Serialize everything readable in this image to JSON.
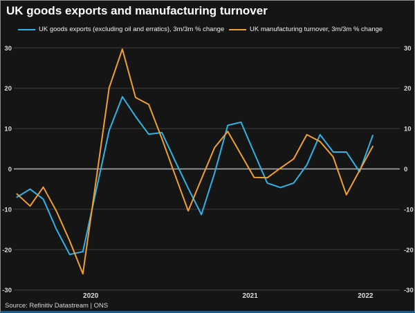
{
  "title": "UK goods exports and manufacturing turnover",
  "source": "Source: Refinitiv Datastream | ONS",
  "colors": {
    "background": "#151515",
    "exports_line": "#2fb4e9",
    "turnover_line": "#f2a02e",
    "zero_line": "#b2b2b2",
    "gridline": "#3f3f3f",
    "axis_text": "#dcdcdc",
    "bottom_bar": "#1f5c85"
  },
  "legend": [
    {
      "label": "UK goods exports (excluding oil and erratics), 3m/3m % change",
      "color": "#2fb4e9"
    },
    {
      "label": "UK manufacturing turnover, 3m/3m % change",
      "color": "#f2a02e"
    }
  ],
  "chart_data": {
    "type": "line",
    "title": "UK goods exports and manufacturing turnover",
    "xlabel": "",
    "ylabel": "3m/3m % change",
    "frequency": "monthly",
    "ylim": [
      -30,
      30
    ],
    "y_ticks": [
      30,
      20,
      10,
      0,
      -10,
      -20,
      -30
    ],
    "y_axis_sides": "both",
    "grid": true,
    "zero_line": true,
    "legend_position": "top",
    "x_ticks": [
      {
        "label": "2020",
        "index": 5.6
      },
      {
        "label": "2021",
        "index": 17.7
      },
      {
        "label": "2022",
        "index": 26.45
      }
    ],
    "series": [
      {
        "name": "UK goods exports (excluding oil and erratics), 3m/3m % change",
        "color": "#2fb4e9",
        "values": [
          -7.0,
          -5.0,
          -7.5,
          -15.0,
          -21.2,
          -20.5,
          -5.5,
          9.5,
          17.9,
          13.0,
          8.6,
          9.0,
          2.0,
          -4.8,
          -11.3,
          -1.0,
          10.8,
          11.6,
          4.0,
          -3.5,
          -4.6,
          -3.5,
          1.0,
          8.5,
          4.2,
          4.2,
          -0.7,
          8.3
        ]
      },
      {
        "name": "UK manufacturing turnover, 3m/3m % change",
        "color": "#f2a02e",
        "values": [
          -6.2,
          -9.2,
          -4.5,
          -10.5,
          -17.8,
          -26.0,
          -3.0,
          20.1,
          29.7,
          17.7,
          16.0,
          7.5,
          -1.5,
          -10.4,
          -2.5,
          5.3,
          9.3,
          3.6,
          -2.1,
          -2.2,
          0.2,
          2.5,
          8.5,
          6.8,
          3.0,
          -6.4,
          -0.4,
          5.6
        ]
      }
    ]
  }
}
